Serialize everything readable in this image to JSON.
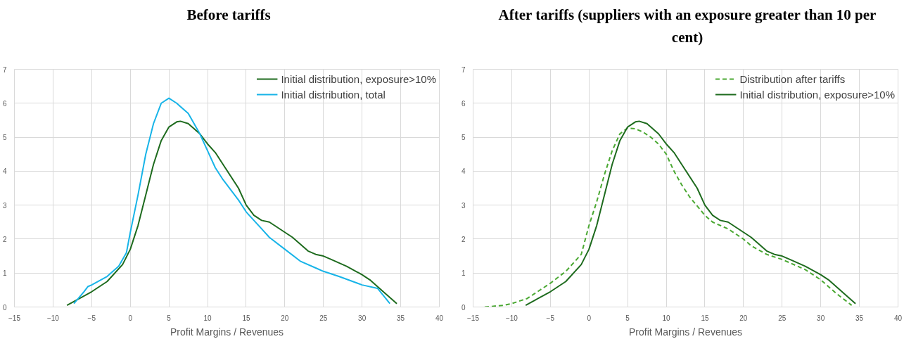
{
  "chart_data": [
    {
      "type": "line",
      "title": "Before tariffs",
      "xlabel": "Profit Margins / Revenues",
      "xlim": [
        -15,
        40
      ],
      "xticks": [
        -15,
        -10,
        -5,
        0,
        5,
        10,
        15,
        20,
        25,
        30,
        35,
        40
      ],
      "ylim": [
        0,
        7
      ],
      "yticks": [
        0,
        1,
        2,
        3,
        4,
        5,
        6,
        7
      ],
      "grid": true,
      "legend": "top right",
      "marker": "none",
      "series": [
        {
          "name": "Initial distribution, exposure>10%",
          "color": "#1e6b1e",
          "line_style": "solid",
          "x": [
            -8.2,
            -7,
            -5,
            -3,
            -1,
            0,
            1,
            2,
            3,
            4,
            5,
            6,
            6.5,
            7.5,
            9,
            10,
            11,
            12,
            14,
            15,
            16,
            17,
            18,
            20,
            21,
            23,
            24,
            25,
            26,
            28,
            30,
            31,
            33,
            34.5
          ],
          "values": [
            0.05,
            0.2,
            0.45,
            0.75,
            1.25,
            1.7,
            2.4,
            3.3,
            4.2,
            4.9,
            5.3,
            5.45,
            5.47,
            5.4,
            5.1,
            4.8,
            4.55,
            4.2,
            3.5,
            3.0,
            2.7,
            2.55,
            2.5,
            2.2,
            2.05,
            1.65,
            1.55,
            1.5,
            1.4,
            1.2,
            0.95,
            0.8,
            0.4,
            0.1
          ]
        },
        {
          "name": "Initial distribution, total",
          "color": "#18b4e8",
          "line_style": "solid",
          "x": [
            -7.3,
            -6,
            -5.5,
            -5,
            -3,
            -1.5,
            -0.5,
            0,
            1,
            2,
            3,
            4,
            5,
            6,
            7.5,
            9,
            10,
            11,
            12,
            14,
            15,
            17,
            18,
            20,
            22,
            24,
            25,
            27,
            30,
            32,
            33.6
          ],
          "values": [
            0.1,
            0.45,
            0.6,
            0.65,
            0.9,
            1.2,
            1.6,
            2.2,
            3.3,
            4.5,
            5.4,
            6.0,
            6.15,
            6.0,
            5.7,
            5.1,
            4.6,
            4.1,
            3.75,
            3.15,
            2.8,
            2.3,
            2.05,
            1.7,
            1.35,
            1.15,
            1.05,
            0.9,
            0.65,
            0.55,
            0.1
          ]
        }
      ]
    },
    {
      "type": "line",
      "title": "After tariffs (suppliers with an exposure greater than 10 per cent)",
      "xlabel": "Profit Margins / Revenues",
      "xlim": [
        -15,
        40
      ],
      "xticks": [
        -15,
        -10,
        -5,
        0,
        5,
        10,
        15,
        20,
        25,
        30,
        35,
        40
      ],
      "ylim": [
        0,
        7
      ],
      "yticks": [
        0,
        1,
        2,
        3,
        4,
        5,
        6,
        7
      ],
      "grid": true,
      "legend": "top right",
      "marker": "none",
      "series": [
        {
          "name": "Distribution after tariffs",
          "color": "#4aa832",
          "line_style": "dashed",
          "x": [
            -13.5,
            -11,
            -10,
            -8,
            -5,
            -3,
            -1,
            0,
            1,
            2,
            3,
            4,
            5,
            6,
            7,
            8,
            9,
            10,
            11,
            12,
            13,
            15,
            16,
            18,
            20,
            21,
            23,
            25,
            27,
            28,
            30,
            32,
            34
          ],
          "values": [
            0,
            0.05,
            0.1,
            0.25,
            0.7,
            1.05,
            1.55,
            2.4,
            3.1,
            3.9,
            4.6,
            5.1,
            5.27,
            5.25,
            5.15,
            5.0,
            4.8,
            4.5,
            4.0,
            3.6,
            3.25,
            2.7,
            2.5,
            2.3,
            2.0,
            1.8,
            1.55,
            1.4,
            1.2,
            1.1,
            0.8,
            0.4,
            0.05
          ]
        },
        {
          "name": "Initial distribution, exposure>10%",
          "color": "#1e6b1e",
          "line_style": "solid",
          "x": [
            -8.2,
            -7,
            -5,
            -3,
            -1,
            0,
            1,
            2,
            3,
            4,
            5,
            6,
            6.5,
            7.5,
            9,
            10,
            11,
            12,
            14,
            15,
            16,
            17,
            18,
            20,
            21,
            23,
            24,
            25,
            26,
            28,
            30,
            31,
            33,
            34.5
          ],
          "values": [
            0.05,
            0.2,
            0.45,
            0.75,
            1.25,
            1.7,
            2.4,
            3.3,
            4.2,
            4.9,
            5.3,
            5.45,
            5.47,
            5.4,
            5.1,
            4.8,
            4.55,
            4.2,
            3.5,
            3.0,
            2.7,
            2.55,
            2.5,
            2.2,
            2.05,
            1.65,
            1.55,
            1.5,
            1.4,
            1.2,
            0.95,
            0.8,
            0.4,
            0.1
          ]
        }
      ]
    }
  ]
}
